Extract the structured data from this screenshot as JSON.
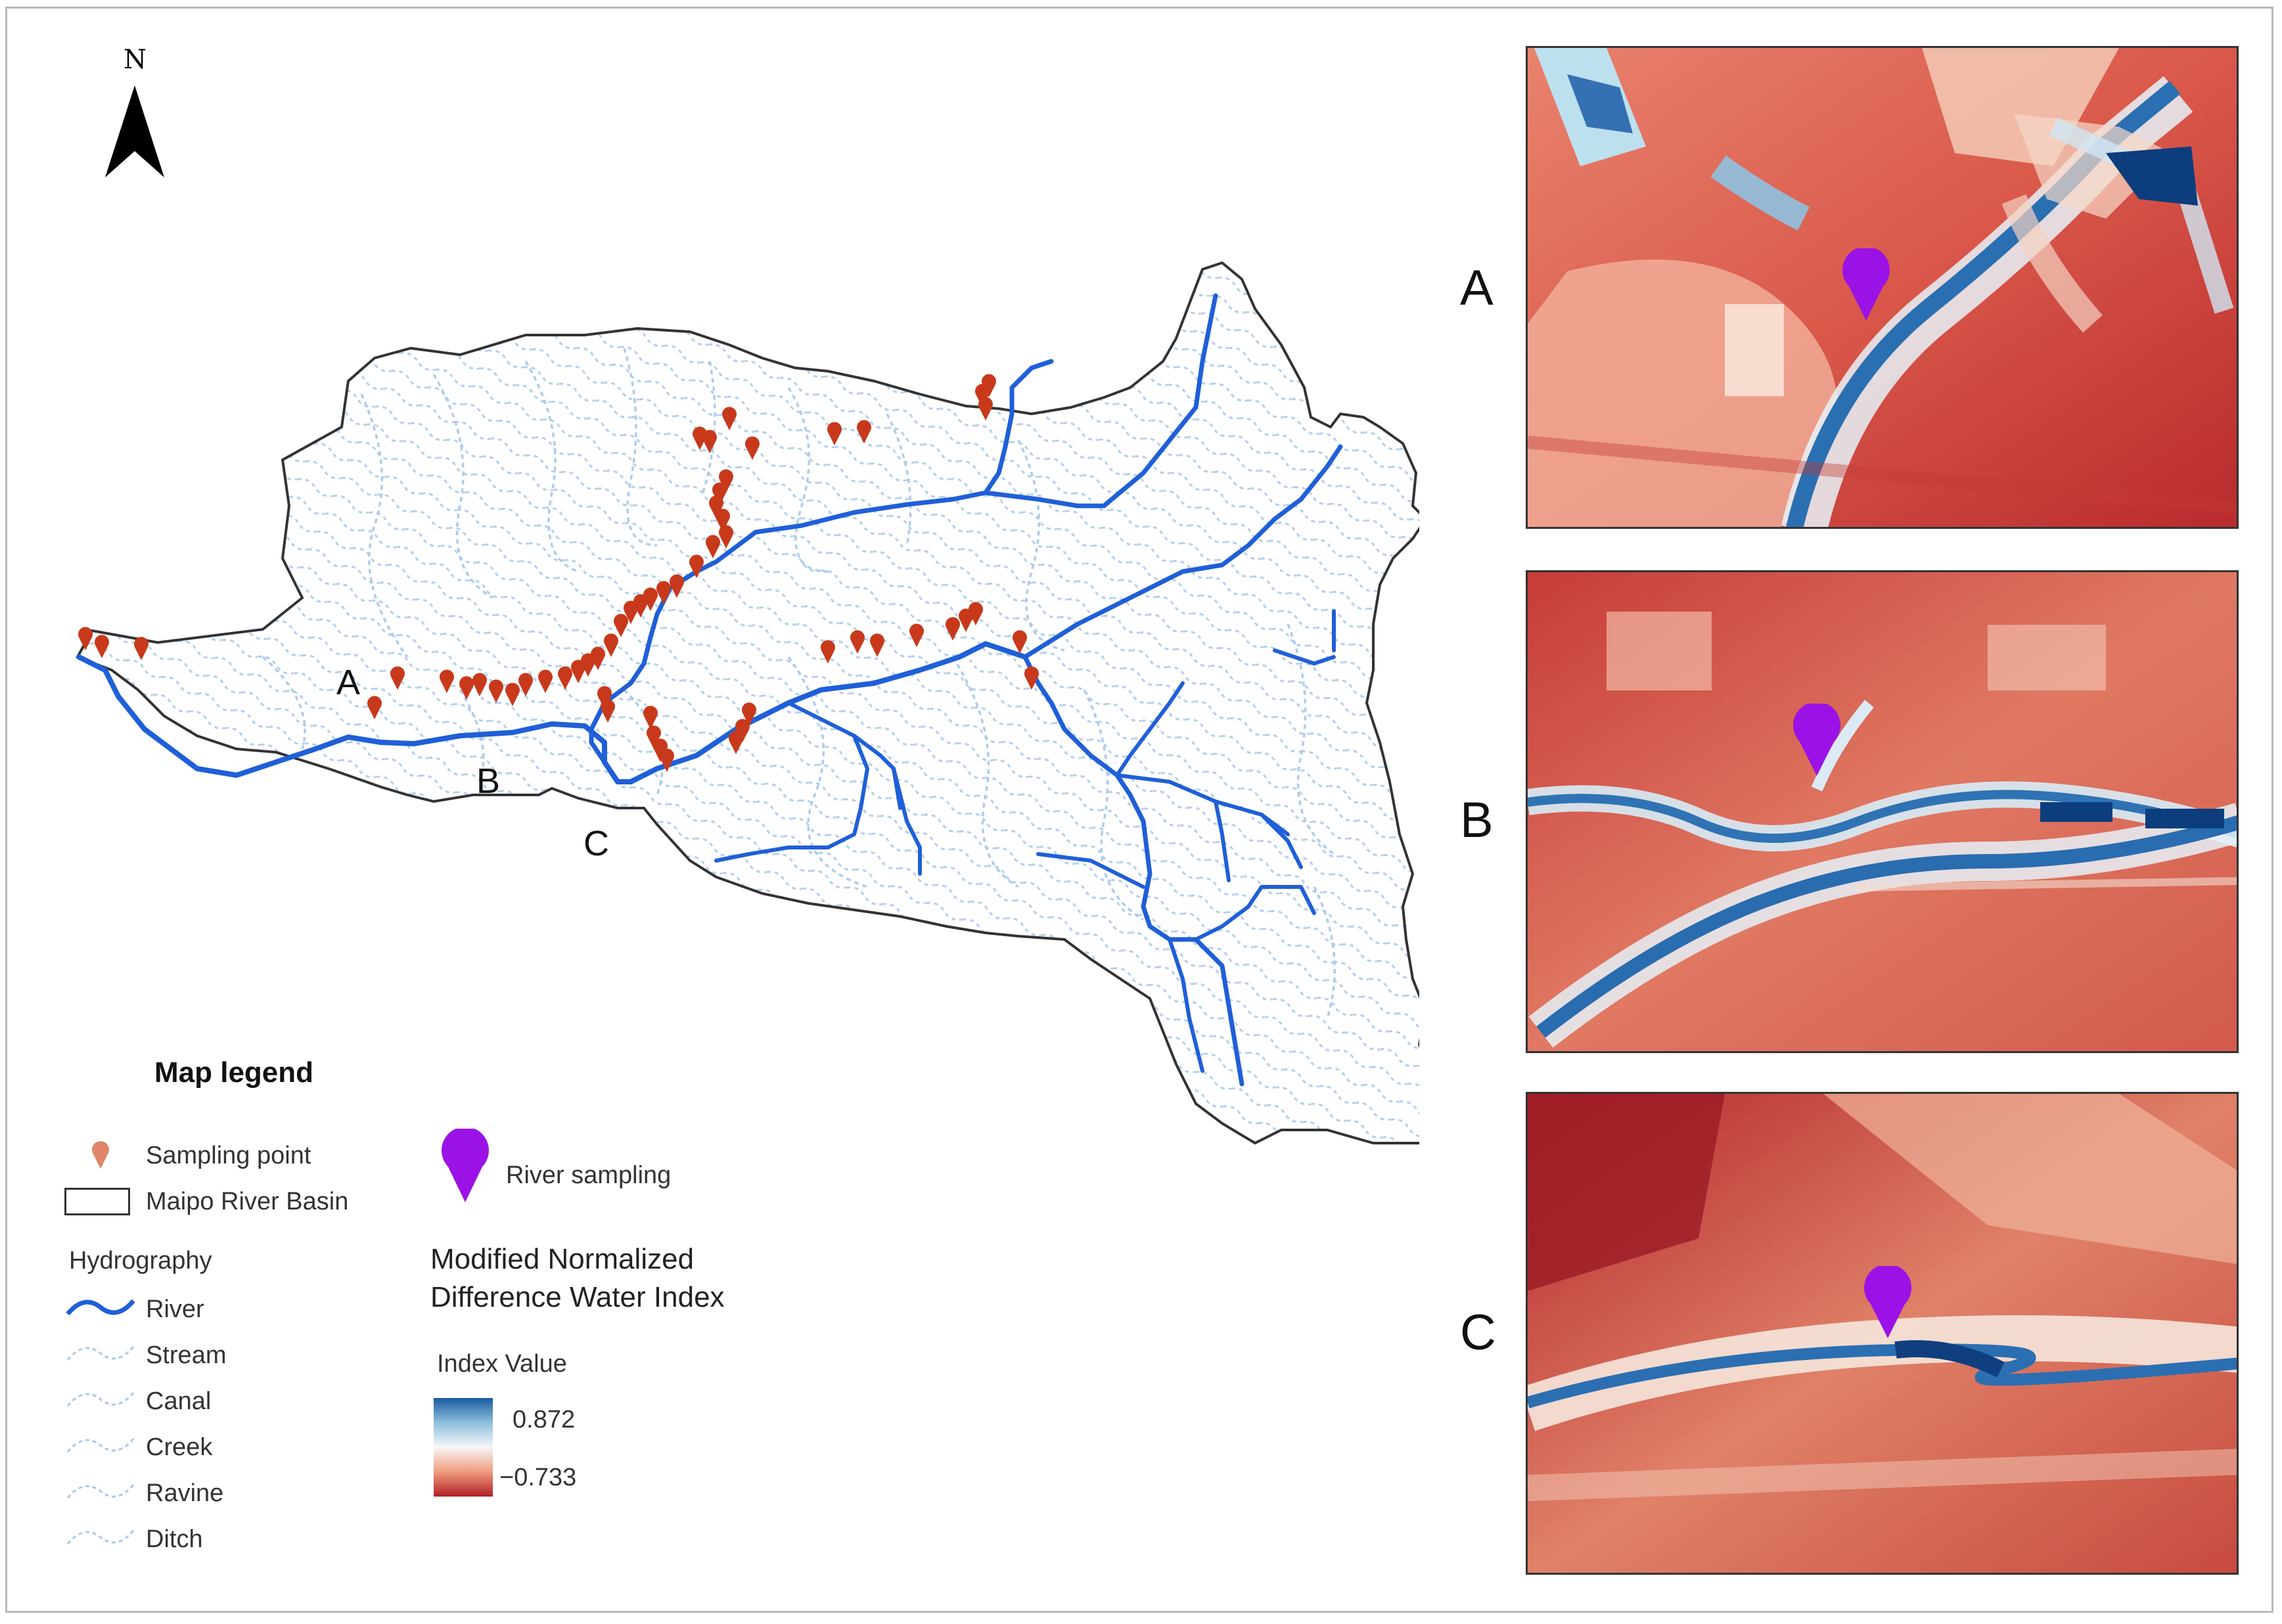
{
  "north": {
    "label": "N",
    "icon": "north-arrow-icon"
  },
  "map": {
    "area_letters": [
      "A",
      "B",
      "C"
    ],
    "sampling_icon": "sampling-point-marker-icon"
  },
  "panels": [
    {
      "id": "A",
      "label": "A",
      "marker_icon": "river-sampling-pin-icon"
    },
    {
      "id": "B",
      "label": "B",
      "marker_icon": "river-sampling-pin-icon"
    },
    {
      "id": "C",
      "label": "C",
      "marker_icon": "river-sampling-pin-icon"
    }
  ],
  "legend": {
    "title": "Map legend",
    "sampling_point": "Sampling point",
    "basin": "Maipo River Basin",
    "river_sampling": "River sampling",
    "hydrography_title": "Hydrography",
    "hydrography": [
      "River",
      "Stream",
      "Canal",
      "Creek",
      "Ravine",
      "Ditch"
    ],
    "index_title_line1": "Modified Normalized",
    "index_title_line2": "Difference Water Index",
    "index_value_title": "Index Value",
    "index_max": "0.872",
    "index_min": "−0.733"
  },
  "colors": {
    "river": "#1f5fd8",
    "stream": "#a9c9ec",
    "sampling_point": "#c8391b",
    "river_sampling": "#9b12e6",
    "index_high": "#1a5aa0",
    "index_low": "#b01f27"
  }
}
